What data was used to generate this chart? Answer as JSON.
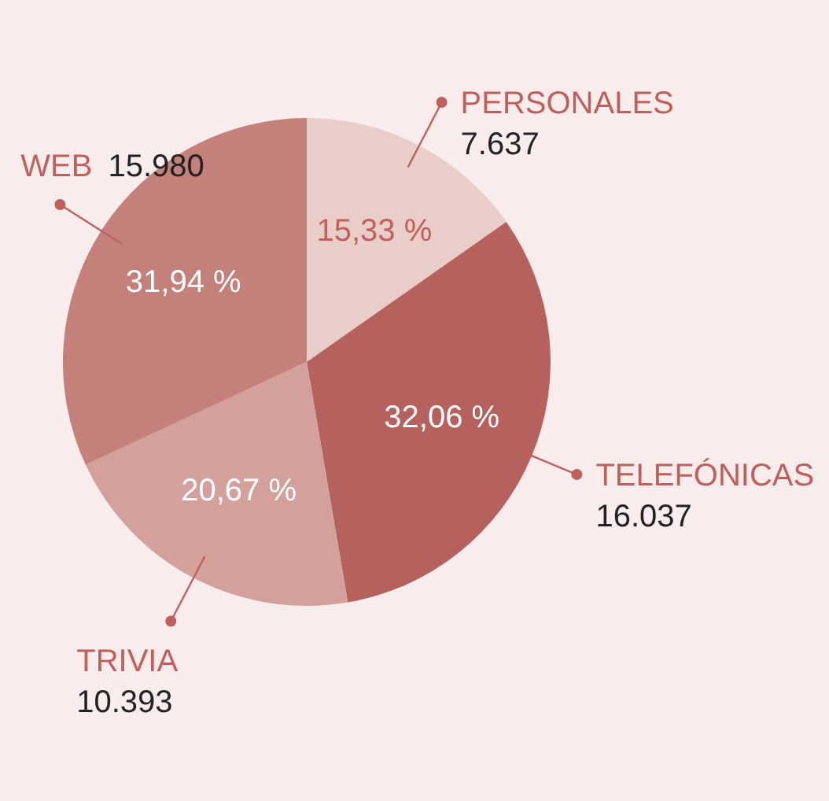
{
  "chart_data": {
    "type": "pie",
    "categories": [
      "PERSONALES",
      "TELEFÓNICAS",
      "TRIVIA",
      "WEB"
    ],
    "values": [
      7637,
      16037,
      10393,
      15980
    ],
    "colors": [
      "#e8cdc9",
      "#b5625f",
      "#d3a09b",
      "#c4807a"
    ],
    "value_labels": [
      "7.637",
      "16.037",
      "10.393",
      "15.980"
    ],
    "annotations": [
      {
        "text": "15,33 %",
        "x": "PERSONALES"
      },
      {
        "text": "32,06 %",
        "x": "TELEFÓNICAS"
      },
      {
        "text": "20,67 %",
        "x": "TRIVIA"
      },
      {
        "text": "31,94 %",
        "x": "WEB"
      }
    ],
    "legend": "right"
  }
}
